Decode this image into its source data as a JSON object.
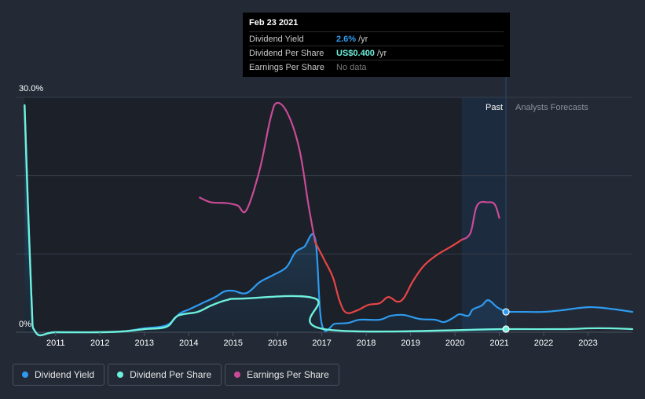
{
  "tooltip": {
    "date": "Feb 23 2021",
    "rows": [
      {
        "label": "Dividend Yield",
        "value": "2.6%",
        "unit": "/yr",
        "color": "#2e9bf0"
      },
      {
        "label": "Dividend Per Share",
        "value": "US$0.400",
        "unit": "/yr",
        "color": "#6ef0dc"
      },
      {
        "label": "Earnings Per Share",
        "value": "No data",
        "unit": "",
        "color": "#777777"
      }
    ]
  },
  "regions": {
    "past": "Past",
    "forecast": "Analysts Forecasts"
  },
  "legend": [
    {
      "label": "Dividend Yield",
      "color": "#2e9bf0"
    },
    {
      "label": "Dividend Per Share",
      "color": "#6ef0dc"
    },
    {
      "label": "Earnings Per Share",
      "color": "#c94b96"
    }
  ],
  "colors": {
    "background": "#232a35",
    "past_shade": "#1b2029",
    "highlight": "#1e3148",
    "yield": "#2e9bf0",
    "dps": "#6ef0dc",
    "eps": "#c94b96",
    "eps_negative_trend": "#e84545"
  },
  "chart_data": {
    "type": "line",
    "xlim": [
      2010.1,
      2024.0
    ],
    "ylim": [
      0,
      30
    ],
    "y_ticks": [
      {
        "value": 0,
        "label": "0%"
      },
      {
        "value": 30,
        "label": "30.0%"
      }
    ],
    "x_ticks": [
      2011,
      2012,
      2013,
      2014,
      2015,
      2016,
      2017,
      2018,
      2019,
      2020,
      2021,
      2022,
      2023
    ],
    "grid": true,
    "past_region": [
      2010.3,
      2021.15
    ],
    "highlight_region": [
      2020.15,
      2021.15
    ],
    "cursor_x": 2021.15,
    "series": [
      {
        "name": "Dividend Yield",
        "key": "yield",
        "fill": true,
        "points": [
          [
            2010.3,
            29.0
          ],
          [
            2010.45,
            5
          ],
          [
            2010.55,
            0
          ],
          [
            2011.0,
            0
          ],
          [
            2012.0,
            0
          ],
          [
            2012.5,
            0.1
          ],
          [
            2013.0,
            0.5
          ],
          [
            2013.5,
            0.9
          ],
          [
            2013.8,
            2.4
          ],
          [
            2014.0,
            2.9
          ],
          [
            2014.3,
            3.7
          ],
          [
            2014.6,
            4.5
          ],
          [
            2014.8,
            5.2
          ],
          [
            2015.0,
            5.3
          ],
          [
            2015.3,
            5.0
          ],
          [
            2015.6,
            6.4
          ],
          [
            2015.9,
            7.3
          ],
          [
            2016.2,
            8.3
          ],
          [
            2016.4,
            10.2
          ],
          [
            2016.6,
            10.9
          ],
          [
            2016.85,
            11.9
          ],
          [
            2017.0,
            1.0
          ],
          [
            2017.3,
            1.1
          ],
          [
            2017.6,
            1.2
          ],
          [
            2017.85,
            1.6
          ],
          [
            2018.3,
            1.6
          ],
          [
            2018.55,
            2.1
          ],
          [
            2018.85,
            2.2
          ],
          [
            2019.2,
            1.7
          ],
          [
            2019.55,
            1.6
          ],
          [
            2019.75,
            1.3
          ],
          [
            2019.95,
            1.8
          ],
          [
            2020.1,
            2.3
          ],
          [
            2020.3,
            2.1
          ],
          [
            2020.4,
            2.9
          ],
          [
            2020.6,
            3.4
          ],
          [
            2020.75,
            4.1
          ],
          [
            2020.95,
            3.2
          ],
          [
            2021.15,
            2.6
          ]
        ]
      },
      {
        "name": "Dividend Yield forecast",
        "key": "yield_forecast",
        "points": [
          [
            2021.15,
            2.6
          ],
          [
            2021.6,
            2.6
          ],
          [
            2022.0,
            2.6
          ],
          [
            2022.4,
            2.8
          ],
          [
            2023.0,
            3.2
          ],
          [
            2023.5,
            3.0
          ],
          [
            2024.0,
            2.6
          ]
        ]
      },
      {
        "name": "Dividend Per Share",
        "key": "dps",
        "points": [
          [
            2010.3,
            29.0
          ],
          [
            2010.45,
            5
          ],
          [
            2010.55,
            0
          ],
          [
            2011.0,
            0
          ],
          [
            2012.0,
            0
          ],
          [
            2012.5,
            0.1
          ],
          [
            2013.0,
            0.4
          ],
          [
            2013.5,
            0.7
          ],
          [
            2013.75,
            2.1
          ],
          [
            2014.2,
            2.6
          ],
          [
            2014.5,
            3.4
          ],
          [
            2014.85,
            4.1
          ],
          [
            2015.2,
            4.3
          ],
          [
            2016.85,
            4.3
          ],
          [
            2017.05,
            0.4
          ],
          [
            2021.15,
            0.4
          ]
        ]
      },
      {
        "name": "Dividend Per Share forecast",
        "key": "dps_forecast",
        "points": [
          [
            2021.15,
            0.4
          ],
          [
            2022.5,
            0.4
          ],
          [
            2023.0,
            0.5
          ],
          [
            2023.5,
            0.5
          ],
          [
            2024.0,
            0.4
          ]
        ]
      },
      {
        "name": "Earnings Per Share",
        "key": "eps",
        "points": [
          [
            2014.25,
            17.2
          ],
          [
            2014.5,
            16.6
          ],
          [
            2014.85,
            16.5
          ],
          [
            2015.1,
            16.2
          ],
          [
            2015.3,
            15.6
          ],
          [
            2015.6,
            20.8
          ],
          [
            2015.85,
            27.5
          ],
          [
            2016.0,
            29.3
          ],
          [
            2016.25,
            27.7
          ],
          [
            2016.5,
            23.2
          ],
          [
            2016.7,
            16.2
          ],
          [
            2016.85,
            11.5
          ]
        ]
      },
      {
        "name": "Earnings Per Share trough",
        "key": "eps_neg",
        "points": [
          [
            2016.85,
            11.5
          ],
          [
            2017.05,
            9.3
          ],
          [
            2017.25,
            7.0
          ],
          [
            2017.4,
            4.0
          ],
          [
            2017.55,
            2.5
          ],
          [
            2017.8,
            2.8
          ],
          [
            2018.05,
            3.5
          ],
          [
            2018.3,
            3.7
          ],
          [
            2018.5,
            4.5
          ],
          [
            2018.7,
            3.9
          ],
          [
            2018.85,
            4.4
          ],
          [
            2019.05,
            6.5
          ],
          [
            2019.3,
            8.5
          ],
          [
            2019.6,
            9.9
          ],
          [
            2019.9,
            10.9
          ],
          [
            2020.15,
            11.8
          ]
        ]
      },
      {
        "name": "Earnings Per Share recovery",
        "key": "eps",
        "points": [
          [
            2020.15,
            11.8
          ],
          [
            2020.35,
            12.7
          ],
          [
            2020.5,
            16.2
          ],
          [
            2020.75,
            16.6
          ],
          [
            2020.9,
            16.3
          ],
          [
            2021.0,
            14.6
          ]
        ]
      }
    ],
    "markers": [
      {
        "series": "Dividend Yield",
        "x": 2021.15,
        "y": 2.6
      },
      {
        "series": "Dividend Per Share",
        "x": 2021.15,
        "y": 0.4
      }
    ]
  }
}
